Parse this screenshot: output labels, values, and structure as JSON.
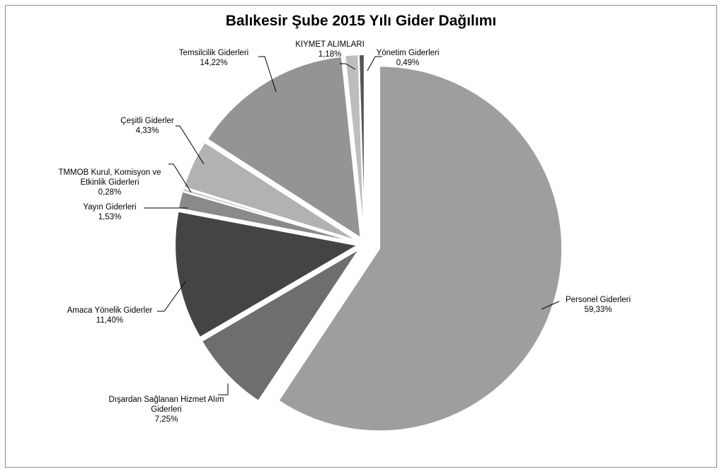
{
  "chart_data": {
    "type": "pie",
    "title": "Balıkesir Şube 2015 Yılı Gider Dağılımı",
    "slices": [
      {
        "name_lines": [
          "Personel Giderleri"
        ],
        "value": 59.33,
        "label": "59,33%",
        "color": "#9e9e9e"
      },
      {
        "name_lines": [
          "Dışardan Sağlanan Hizmet Alım",
          "Giderleri"
        ],
        "value": 7.25,
        "label": "7,25%",
        "color": "#6e6e6e"
      },
      {
        "name_lines": [
          "Amaca Yönelik Giderler"
        ],
        "value": 11.4,
        "label": "11,40%",
        "color": "#444444"
      },
      {
        "name_lines": [
          "Yayın Giderleri"
        ],
        "value": 1.53,
        "label": "1,53%",
        "color": "#8a8a8a"
      },
      {
        "name_lines": [
          "TMMOB Kurul, Komisyon ve",
          "Etkinlik Giderleri"
        ],
        "value": 0.28,
        "label": "0,28%",
        "color": "#c4c4c4"
      },
      {
        "name_lines": [
          "Çeşitli Giderler"
        ],
        "value": 4.33,
        "label": "4,33%",
        "color": "#b2b2b2"
      },
      {
        "name_lines": [
          "Temsilcilik Giderleri"
        ],
        "value": 14.22,
        "label": "14,22%",
        "color": "#949494"
      },
      {
        "name_lines": [
          "KIYMET ALIMLARI"
        ],
        "value": 1.18,
        "label": "1,18%",
        "color": "#bdbdbd"
      },
      {
        "name_lines": [
          "Yönetim Giderleri"
        ],
        "value": 0.49,
        "label": "0,49%",
        "color": "#555555"
      }
    ]
  }
}
